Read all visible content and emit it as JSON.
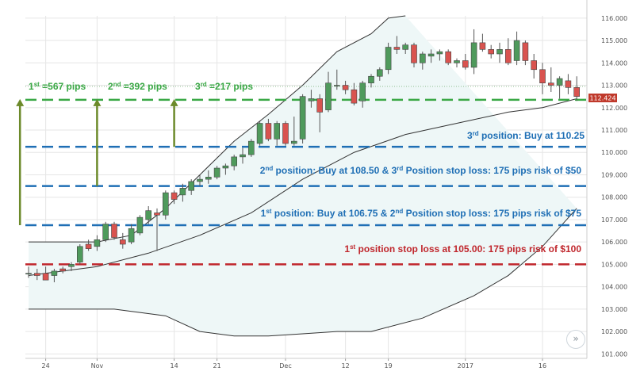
{
  "chart_data": {
    "type": "candlestick",
    "ylim": [
      100.8,
      116.1
    ],
    "y_ticks": [
      "101.000",
      "102.000",
      "103.000",
      "104.000",
      "105.000",
      "106.000",
      "107.000",
      "108.000",
      "109.000",
      "110.000",
      "111.000",
      "112.000",
      "113.000",
      "114.000",
      "115.000",
      "116.000"
    ],
    "x_ticks": [
      {
        "label": "24",
        "idx": 2
      },
      {
        "label": "Nov",
        "idx": 8
      },
      {
        "label": "14",
        "idx": 17
      },
      {
        "label": "21",
        "idx": 22
      },
      {
        "label": "Dec",
        "idx": 30
      },
      {
        "label": "12",
        "idx": 37
      },
      {
        "label": "19",
        "idx": 42
      },
      {
        "label": "2017",
        "idx": 51
      },
      {
        "label": "16",
        "idx": 60
      }
    ],
    "last_price": "112.424",
    "candles": [
      [
        104.6,
        104.9,
        104.4,
        104.6
      ],
      [
        104.6,
        104.8,
        104.3,
        104.5
      ],
      [
        104.6,
        104.9,
        104.3,
        104.3
      ],
      [
        104.5,
        104.8,
        104.2,
        104.7
      ],
      [
        104.8,
        104.9,
        104.6,
        104.7
      ],
      [
        104.9,
        105.1,
        104.7,
        105.0
      ],
      [
        105.1,
        105.9,
        105.0,
        105.8
      ],
      [
        105.9,
        106.1,
        105.6,
        105.7
      ],
      [
        105.8,
        106.3,
        105.6,
        106.1
      ],
      [
        106.1,
        106.9,
        106.0,
        106.8
      ],
      [
        106.8,
        106.9,
        106.1,
        106.2
      ],
      [
        106.1,
        106.4,
        105.7,
        105.9
      ],
      [
        106.0,
        106.8,
        105.9,
        106.6
      ],
      [
        106.4,
        107.2,
        106.3,
        107.1
      ],
      [
        107.0,
        107.6,
        106.8,
        107.4
      ],
      [
        107.3,
        107.5,
        105.6,
        107.2
      ],
      [
        107.2,
        108.3,
        107.0,
        108.2
      ],
      [
        108.2,
        108.3,
        107.7,
        107.9
      ],
      [
        108.1,
        108.6,
        107.8,
        108.4
      ],
      [
        108.3,
        108.8,
        108.1,
        108.7
      ],
      [
        108.7,
        109.0,
        108.5,
        108.8
      ],
      [
        108.8,
        109.2,
        108.6,
        108.9
      ],
      [
        108.9,
        109.4,
        108.8,
        109.3
      ],
      [
        109.3,
        109.5,
        109.0,
        109.4
      ],
      [
        109.4,
        109.9,
        109.2,
        109.8
      ],
      [
        109.8,
        110.2,
        109.5,
        109.9
      ],
      [
        109.9,
        110.6,
        109.8,
        110.5
      ],
      [
        110.4,
        111.4,
        110.3,
        111.3
      ],
      [
        111.3,
        111.5,
        110.5,
        110.6
      ],
      [
        110.6,
        111.4,
        110.3,
        111.3
      ],
      [
        111.3,
        111.4,
        110.3,
        110.4
      ],
      [
        110.4,
        111.6,
        110.3,
        110.5
      ],
      [
        110.6,
        112.6,
        110.4,
        112.5
      ],
      [
        112.3,
        112.8,
        112.0,
        112.4
      ],
      [
        112.4,
        112.6,
        110.9,
        111.8
      ],
      [
        111.9,
        113.6,
        111.8,
        113.1
      ],
      [
        113.0,
        113.7,
        112.8,
        113.0
      ],
      [
        113.0,
        113.2,
        112.6,
        112.8
      ],
      [
        112.8,
        113.1,
        112.1,
        112.2
      ],
      [
        112.3,
        113.2,
        112.0,
        113.1
      ],
      [
        113.1,
        113.5,
        112.9,
        113.4
      ],
      [
        113.4,
        113.8,
        113.2,
        113.7
      ],
      [
        113.7,
        114.9,
        113.5,
        114.7
      ],
      [
        114.7,
        115.2,
        114.4,
        114.6
      ],
      [
        114.6,
        114.9,
        114.4,
        114.8
      ],
      [
        114.8,
        114.9,
        113.8,
        114.0
      ],
      [
        114.0,
        114.5,
        113.7,
        114.4
      ],
      [
        114.3,
        114.6,
        114.0,
        114.4
      ],
      [
        114.4,
        114.6,
        114.1,
        114.5
      ],
      [
        114.5,
        114.6,
        113.9,
        114.0
      ],
      [
        114.0,
        114.2,
        113.8,
        114.1
      ],
      [
        114.1,
        114.4,
        113.7,
        113.8
      ],
      [
        113.8,
        115.5,
        113.5,
        114.9
      ],
      [
        114.9,
        115.3,
        114.5,
        114.6
      ],
      [
        114.6,
        114.8,
        114.2,
        114.4
      ],
      [
        114.4,
        114.9,
        114.0,
        114.6
      ],
      [
        114.6,
        115.1,
        113.9,
        114.0
      ],
      [
        114.1,
        115.4,
        113.9,
        115.0
      ],
      [
        114.9,
        115.0,
        113.9,
        114.1
      ],
      [
        114.1,
        114.4,
        113.3,
        113.7
      ],
      [
        113.7,
        114.0,
        112.6,
        113.1
      ],
      [
        113.1,
        113.8,
        112.7,
        113.0
      ],
      [
        113.0,
        113.4,
        112.4,
        113.3
      ],
      [
        113.2,
        113.5,
        112.6,
        112.9
      ],
      [
        112.9,
        113.4,
        112.3,
        112.5
      ]
    ],
    "bollinger": {
      "upper": [
        [
          0,
          106.0
        ],
        [
          8,
          106.0
        ],
        [
          12,
          106.3
        ],
        [
          16,
          107.5
        ],
        [
          20,
          109.0
        ],
        [
          24,
          110.5
        ],
        [
          28,
          111.7
        ],
        [
          32,
          113.0
        ],
        [
          36,
          114.5
        ],
        [
          40,
          115.3
        ],
        [
          42,
          116.0
        ],
        [
          44,
          116.1
        ]
      ],
      "middle": [
        [
          0,
          104.5
        ],
        [
          8,
          104.9
        ],
        [
          14,
          105.5
        ],
        [
          20,
          106.3
        ],
        [
          26,
          107.3
        ],
        [
          32,
          108.8
        ],
        [
          38,
          110.0
        ],
        [
          44,
          110.8
        ],
        [
          50,
          111.3
        ],
        [
          56,
          111.8
        ],
        [
          60,
          112.0
        ],
        [
          64,
          112.4
        ]
      ],
      "lower": [
        [
          0,
          103.0
        ],
        [
          10,
          103.0
        ],
        [
          16,
          102.7
        ],
        [
          20,
          102.0
        ],
        [
          24,
          101.8
        ],
        [
          28,
          101.8
        ],
        [
          32,
          101.9
        ],
        [
          36,
          102.0
        ],
        [
          40,
          102.0
        ],
        [
          46,
          102.6
        ],
        [
          52,
          103.6
        ],
        [
          56,
          104.5
        ],
        [
          60,
          105.8
        ],
        [
          64,
          107.5
        ]
      ]
    },
    "levels": [
      {
        "value": 112.35,
        "color": "#3aa845"
      },
      {
        "value": 110.25,
        "color": "#1f6fb5"
      },
      {
        "value": 108.5,
        "color": "#1f6fb5"
      },
      {
        "value": 106.75,
        "color": "#1f6fb5"
      },
      {
        "value": 105.0,
        "color": "#c0262c"
      }
    ],
    "dotted_level": 112.95,
    "arrows": [
      {
        "idx": -1,
        "from": 106.75,
        "to": 112.35
      },
      {
        "idx": 8,
        "from": 108.5,
        "to": 112.35
      },
      {
        "idx": 17,
        "from": 110.25,
        "to": 112.35
      }
    ],
    "annotations": {
      "pips1": {
        "n": "1",
        "sup": "st",
        "text": " =567 pips"
      },
      "pips2": {
        "n": "2",
        "sup": "nd",
        "text": " =392 pips"
      },
      "pips3": {
        "n": "3",
        "sup": "rd",
        "text": " =217 pips"
      },
      "pos3": {
        "n": "3",
        "sup": "rd",
        "text": " position: Buy at 110.25"
      },
      "pos2": {
        "n": "2",
        "sup": "nd",
        "text": " position: Buy at 108.50 & 3",
        "sup2": "rd",
        "text2": " Position stop loss: 175 pips risk of $50"
      },
      "pos1": {
        "n": "1",
        "sup": "st",
        "text": " position: Buy at 106.75 & 2",
        "sup2": "nd",
        "text2": " Position stop loss: 175 pips risk of $75"
      },
      "stop1": {
        "n": "1",
        "sup": "st",
        "text": " position stop loss at 105.00: 175 pips risk of $100"
      }
    },
    "colors": {
      "bull": "#4f9a5c",
      "bear": "#d9534f",
      "grid": "#e6e6e6",
      "band_fill": "#eef7f7",
      "band_line": "#333333",
      "green": "#3aa845",
      "blue": "#1f6fb5",
      "red": "#c0262c",
      "arrow": "#6c8a2a"
    }
  },
  "scroll_button": "»"
}
